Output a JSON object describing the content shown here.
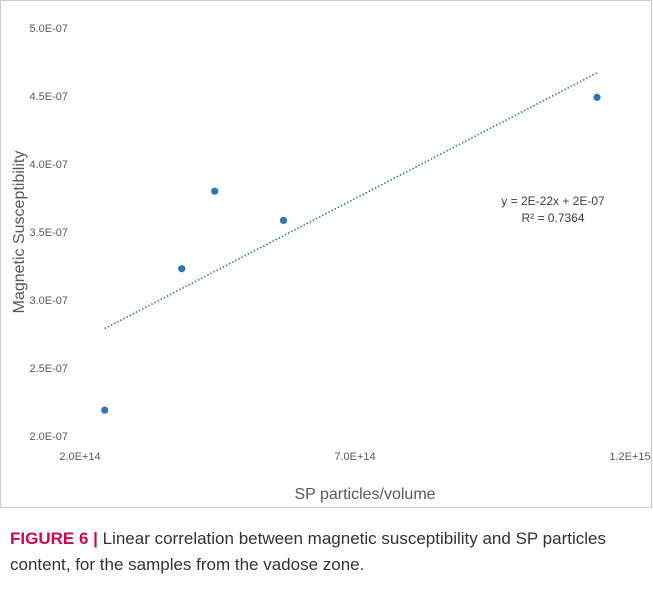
{
  "chart_data": {
    "type": "scatter",
    "xlabel": "SP particles/volume",
    "ylabel": "Magnetic Susceptibility",
    "xlim": [
      200000000000000.0,
      1200000000000000.0
    ],
    "ylim": [
      2e-07,
      5e-07
    ],
    "x_tick_labels": [
      "2.0E+14",
      "7.0E+14",
      "1.2E+15"
    ],
    "x_ticks": [
      200000000000000.0,
      700000000000000.0,
      1200000000000000.0
    ],
    "y_tick_labels": [
      "2.0E-07",
      "2.5E-07",
      "3.0E-07",
      "3.5E-07",
      "4.0E-07",
      "4.5E-07",
      "5.0E-07"
    ],
    "y_ticks": [
      2e-07,
      2.5e-07,
      3e-07,
      3.5e-07,
      4e-07,
      4.5e-07,
      5e-07
    ],
    "grid": false,
    "point_color": "#2e75b6",
    "trendline_color": "#2e75b6",
    "points": [
      {
        "x": 245000000000000.0,
        "y": 2.19e-07
      },
      {
        "x": 385000000000000.0,
        "y": 3.23e-07
      },
      {
        "x": 445000000000000.0,
        "y": 3.8e-07
      },
      {
        "x": 570000000000000.0,
        "y": 3.585e-07
      },
      {
        "x": 1140000000000000.0,
        "y": 4.49e-07
      }
    ],
    "trendline": {
      "type": "linear",
      "x": [
        245000000000000.0,
        1140000000000000.0
      ],
      "y": [
        2.79e-07,
        4.67e-07
      ]
    },
    "annotations": {
      "equation": "y = 2E-22x + 2E-07",
      "r_squared": "R² = 0.7364"
    }
  },
  "caption": {
    "label": "FIGURE 6 |",
    "text": " Linear correlation between magnetic susceptibility and SP particles content, for the samples from the vadose zone."
  }
}
